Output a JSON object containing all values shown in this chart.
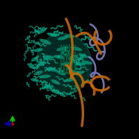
{
  "bg_color": "#000000",
  "fig_width": 2.0,
  "fig_height": 2.0,
  "dpi": 100,
  "protein_color": "#00aa88",
  "dna_orange_color": "#cc6600",
  "dna_purple_color": "#8888cc",
  "axis_green": "#00cc00",
  "axis_blue": "#0000cc",
  "axis_red": "#cc0000"
}
